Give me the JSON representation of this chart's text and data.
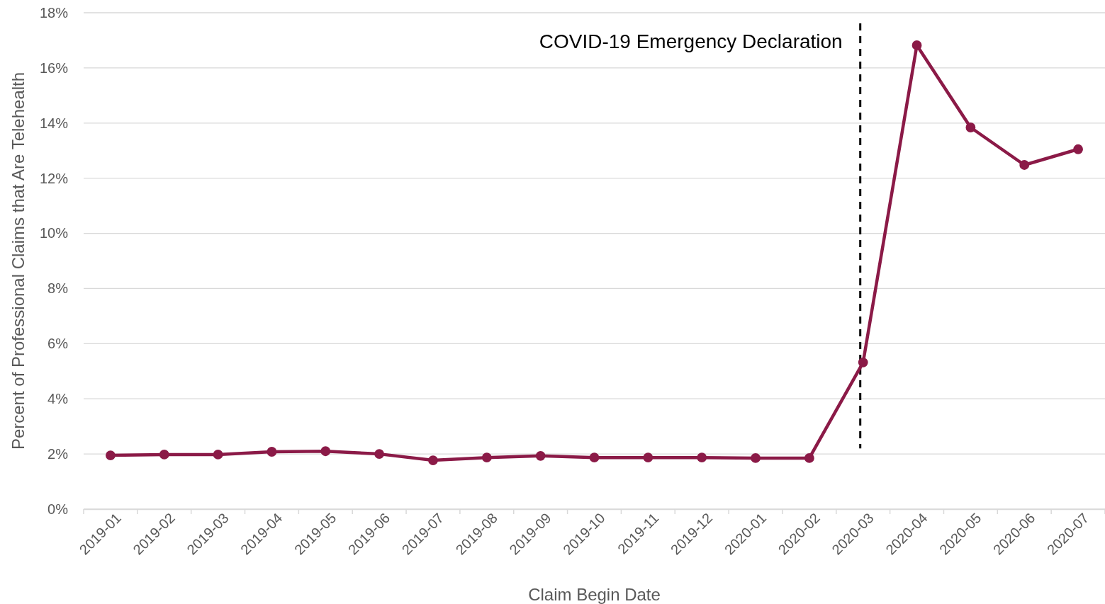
{
  "chart_data": {
    "type": "line",
    "xlabel": "Claim Begin Date",
    "ylabel": "Percent of Professional Claims that Are Telehealth",
    "categories": [
      "2019-01",
      "2019-02",
      "2019-03",
      "2019-04",
      "2019-05",
      "2019-06",
      "2019-07",
      "2019-08",
      "2019-09",
      "2019-10",
      "2019-11",
      "2019-12",
      "2020-01",
      "2020-02",
      "2020-03",
      "2020-04",
      "2020-05",
      "2020-06",
      "2020-07"
    ],
    "series": [
      {
        "color": "#8b1a47",
        "values": [
          1.95,
          1.98,
          1.98,
          2.08,
          2.1,
          2.0,
          1.77,
          1.87,
          1.93,
          1.87,
          1.87,
          1.87,
          1.85,
          1.85,
          5.32,
          16.82,
          13.84,
          12.48,
          13.05
        ]
      }
    ],
    "ylim": [
      0,
      18
    ],
    "yticks": [
      {
        "value": 0,
        "label": "0%"
      },
      {
        "value": 2,
        "label": "2%"
      },
      {
        "value": 4,
        "label": "4%"
      },
      {
        "value": 6,
        "label": "6%"
      },
      {
        "value": 8,
        "label": "8%"
      },
      {
        "value": 10,
        "label": "10%"
      },
      {
        "value": 12,
        "label": "12%"
      },
      {
        "value": 14,
        "label": "14%"
      },
      {
        "value": 16,
        "label": "16%"
      },
      {
        "value": 18,
        "label": "18%"
      }
    ],
    "grid": "y",
    "marker": "circle",
    "line_style": "solid",
    "ref_lines": [
      {
        "axis": "x",
        "value": "2020-03",
        "label": "COVID-19 Emergency Declaration",
        "color": "#000000",
        "line_style": "dashed"
      }
    ]
  }
}
